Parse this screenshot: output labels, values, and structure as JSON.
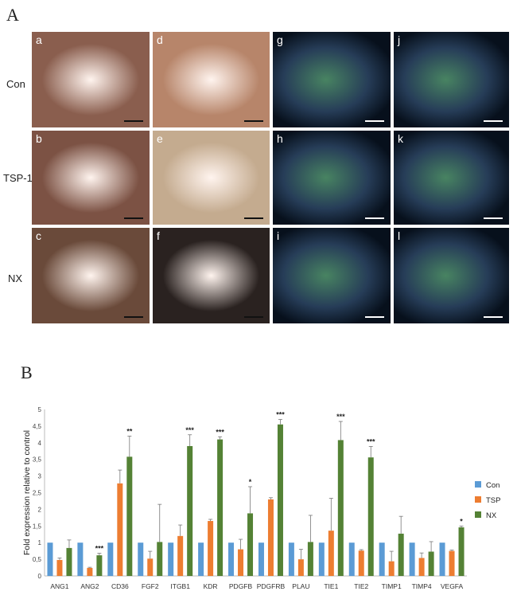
{
  "figure": {
    "panel_a_letter": "A",
    "panel_b_letter": "B",
    "row_labels": [
      "Con",
      "TSP-1",
      "NX"
    ],
    "subpanels": [
      {
        "label": "a",
        "kind": "bright",
        "base": "#8a5e4e"
      },
      {
        "label": "d",
        "kind": "bright",
        "base": "#b7856a"
      },
      {
        "label": "g",
        "kind": "fluor",
        "base": "#07101c"
      },
      {
        "label": "j",
        "kind": "fluor",
        "base": "#07101c"
      },
      {
        "label": "b",
        "kind": "bright",
        "base": "#7c5244"
      },
      {
        "label": "e",
        "kind": "bright",
        "base": "#c4ab8f"
      },
      {
        "label": "h",
        "kind": "fluor",
        "base": "#07101c"
      },
      {
        "label": "k",
        "kind": "fluor",
        "base": "#07101c"
      },
      {
        "label": "c",
        "kind": "bright",
        "base": "#6a4a3a"
      },
      {
        "label": "f",
        "kind": "bright",
        "base": "#2a2220"
      },
      {
        "label": "i",
        "kind": "fluor",
        "base": "#07101c"
      },
      {
        "label": "l",
        "kind": "fluor",
        "base": "#07101c"
      }
    ]
  },
  "chart_data": {
    "type": "bar",
    "title": "",
    "xlabel": "",
    "ylabel": "Fold expression relative to control",
    "ylim": [
      0,
      5
    ],
    "yticks": [
      "0",
      "0,5",
      "1",
      "1,5",
      "2",
      "2,5",
      "3",
      "3,5",
      "4",
      "4,5",
      "5"
    ],
    "grid": false,
    "legend_position": "right",
    "categories": [
      "ANG1",
      "ANG2",
      "CD36",
      "FGF2",
      "ITGB1",
      "KDR",
      "PDGFB",
      "PDGFRB",
      "PLAU",
      "TIE1",
      "TIE2",
      "TIMP1",
      "TIMP4",
      "VEGFA"
    ],
    "series": [
      {
        "name": "Con",
        "color": "#5b9bd5",
        "values": [
          1,
          1,
          1,
          1,
          1,
          1,
          1,
          1,
          1,
          1,
          1,
          1,
          1,
          1
        ],
        "errors": [
          0,
          0,
          0,
          0,
          0,
          0,
          0,
          0,
          0,
          0,
          0,
          0,
          0,
          0
        ]
      },
      {
        "name": "TSP",
        "color": "#ed7d31",
        "values": [
          0.48,
          0.24,
          2.78,
          0.52,
          1.2,
          1.65,
          0.8,
          2.3,
          0.5,
          1.36,
          0.76,
          0.44,
          0.54,
          0.75
        ],
        "errors": [
          0.06,
          0.02,
          0.4,
          0.22,
          0.33,
          0.05,
          0.3,
          0.05,
          0.3,
          0.97,
          0.03,
          0.3,
          0.15,
          0.03
        ]
      },
      {
        "name": "NX",
        "color": "#548235",
        "values": [
          0.84,
          0.62,
          3.58,
          1.02,
          3.9,
          4.1,
          1.88,
          4.55,
          1.02,
          4.08,
          3.56,
          1.27,
          0.73,
          1.46
        ],
        "errors": [
          0.24,
          0.06,
          0.62,
          1.13,
          0.34,
          0.08,
          0.8,
          0.15,
          0.8,
          0.56,
          0.33,
          0.52,
          0.3,
          0.04
        ]
      }
    ],
    "significance": [
      "",
      "***",
      "**",
      "",
      "***",
      "***",
      "*",
      "***",
      "",
      "***",
      "***",
      "",
      "",
      "*"
    ]
  }
}
